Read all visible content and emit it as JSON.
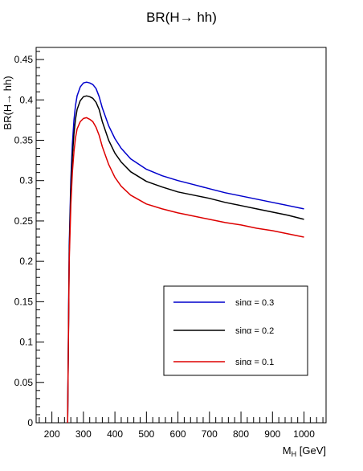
{
  "chart_data": {
    "type": "line",
    "title": "BR(H→ hh)",
    "xlabel_main": "M",
    "xlabel_sub": "H",
    "xlabel_unit": " [GeV]",
    "ylabel": "BR(H→ hh)",
    "xlim": [
      150,
      1070
    ],
    "ylim": [
      0,
      0.465
    ],
    "x_ticks": [
      200,
      300,
      400,
      500,
      600,
      700,
      800,
      900,
      1000
    ],
    "y_ticks": [
      0,
      0.05,
      0.1,
      0.15,
      0.2,
      0.25,
      0.3,
      0.35,
      0.4,
      0.45
    ],
    "y_tick_labels": [
      "0",
      "0.05",
      "0.1",
      "0.15",
      "0.2",
      "0.25",
      "0.3",
      "0.35",
      "0.4",
      "0.45"
    ],
    "grid": false,
    "legend_position": "bottom-right",
    "series": [
      {
        "name": "sinα = 0.3",
        "color": "#0000cc",
        "x": [
          250,
          255,
          260,
          265,
          270,
          275,
          280,
          290,
          300,
          310,
          320,
          330,
          340,
          350,
          360,
          380,
          400,
          420,
          450,
          500,
          550,
          600,
          650,
          700,
          750,
          800,
          850,
          900,
          950,
          1000
        ],
        "y": [
          0.0,
          0.22,
          0.3,
          0.345,
          0.375,
          0.393,
          0.405,
          0.416,
          0.421,
          0.422,
          0.421,
          0.419,
          0.414,
          0.404,
          0.39,
          0.368,
          0.352,
          0.34,
          0.327,
          0.314,
          0.306,
          0.3,
          0.295,
          0.29,
          0.285,
          0.281,
          0.277,
          0.273,
          0.269,
          0.265
        ]
      },
      {
        "name": "sinα = 0.2",
        "color": "#000000",
        "x": [
          250,
          255,
          260,
          265,
          270,
          275,
          280,
          290,
          300,
          310,
          320,
          330,
          340,
          350,
          360,
          380,
          400,
          420,
          450,
          500,
          550,
          600,
          650,
          700,
          750,
          800,
          850,
          900,
          950,
          1000
        ],
        "y": [
          0.0,
          0.21,
          0.29,
          0.33,
          0.358,
          0.376,
          0.388,
          0.399,
          0.404,
          0.405,
          0.404,
          0.402,
          0.397,
          0.388,
          0.373,
          0.35,
          0.334,
          0.323,
          0.311,
          0.299,
          0.292,
          0.286,
          0.282,
          0.278,
          0.273,
          0.269,
          0.265,
          0.261,
          0.257,
          0.252
        ]
      },
      {
        "name": "sinα = 0.1",
        "color": "#dd0000",
        "x": [
          250,
          255,
          260,
          265,
          270,
          275,
          280,
          290,
          300,
          310,
          320,
          330,
          340,
          350,
          360,
          380,
          400,
          420,
          450,
          500,
          550,
          600,
          650,
          700,
          750,
          800,
          850,
          900,
          950,
          1000
        ],
        "y": [
          0.0,
          0.2,
          0.27,
          0.31,
          0.336,
          0.353,
          0.364,
          0.373,
          0.377,
          0.378,
          0.376,
          0.373,
          0.366,
          0.356,
          0.342,
          0.32,
          0.304,
          0.293,
          0.282,
          0.271,
          0.265,
          0.26,
          0.256,
          0.252,
          0.248,
          0.245,
          0.241,
          0.238,
          0.234,
          0.23
        ]
      }
    ]
  }
}
